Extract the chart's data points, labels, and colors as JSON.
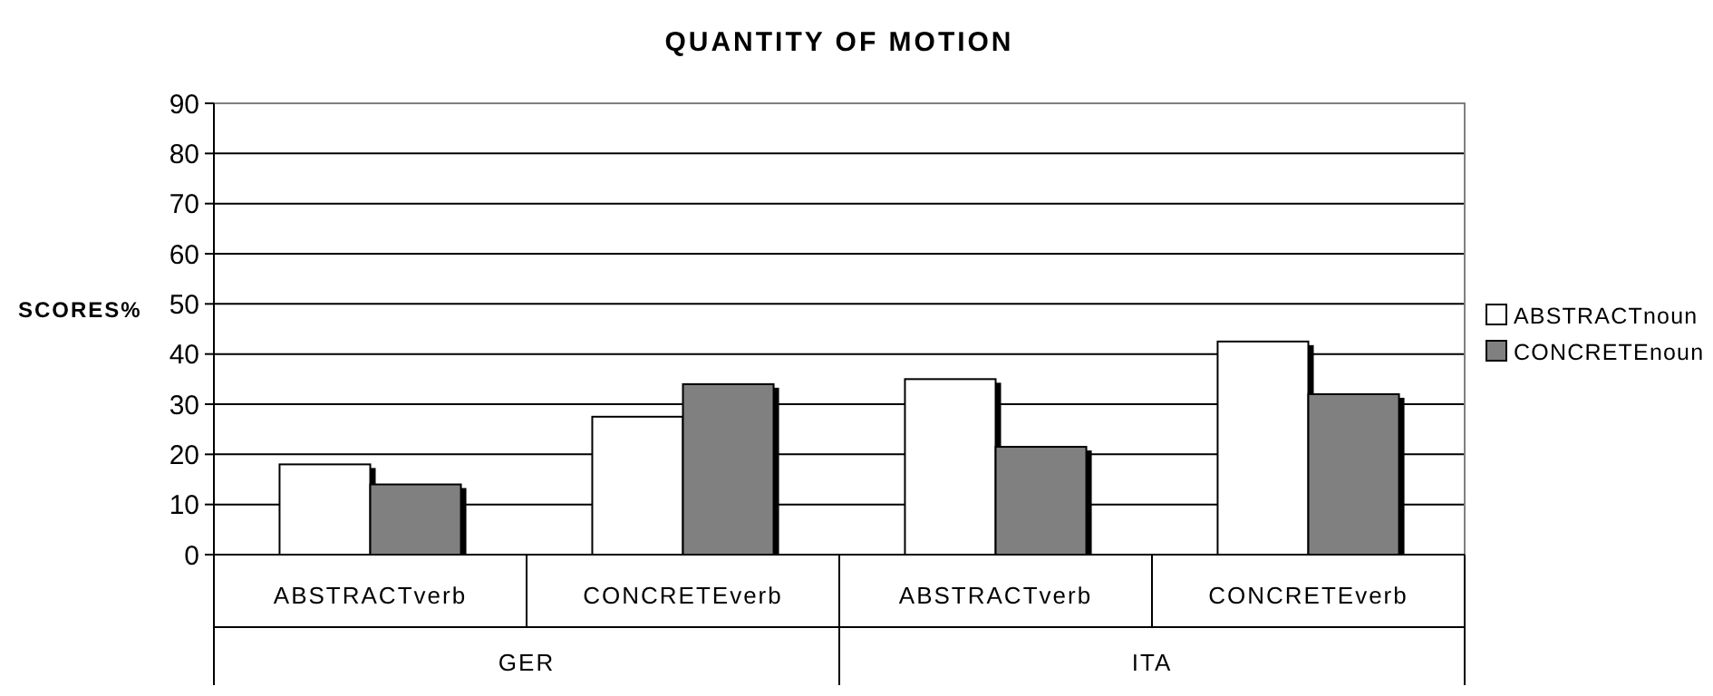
{
  "chart_data": {
    "type": "bar",
    "title": "QUANTITY OF MOTION",
    "ylabel": "SCORES%",
    "categories": [
      "ABSTRACTverb",
      "CONCRETEverb",
      "ABSTRACTverb",
      "CONCRETEverb"
    ],
    "annotations": [
      "GER",
      "ITA"
    ],
    "series": [
      {
        "name": "ABSTRACTnoun",
        "color": "#ffffff",
        "values": [
          18,
          27.5,
          35,
          42.5
        ]
      },
      {
        "name": "CONCRETEnoun",
        "color": "#808080",
        "values": [
          14,
          34,
          21.5,
          32
        ]
      }
    ],
    "ylim": [
      0,
      90
    ],
    "yticks": [
      0,
      10,
      20,
      30,
      40,
      50,
      60,
      70,
      80,
      90
    ],
    "grid": "y",
    "legend": "right"
  }
}
